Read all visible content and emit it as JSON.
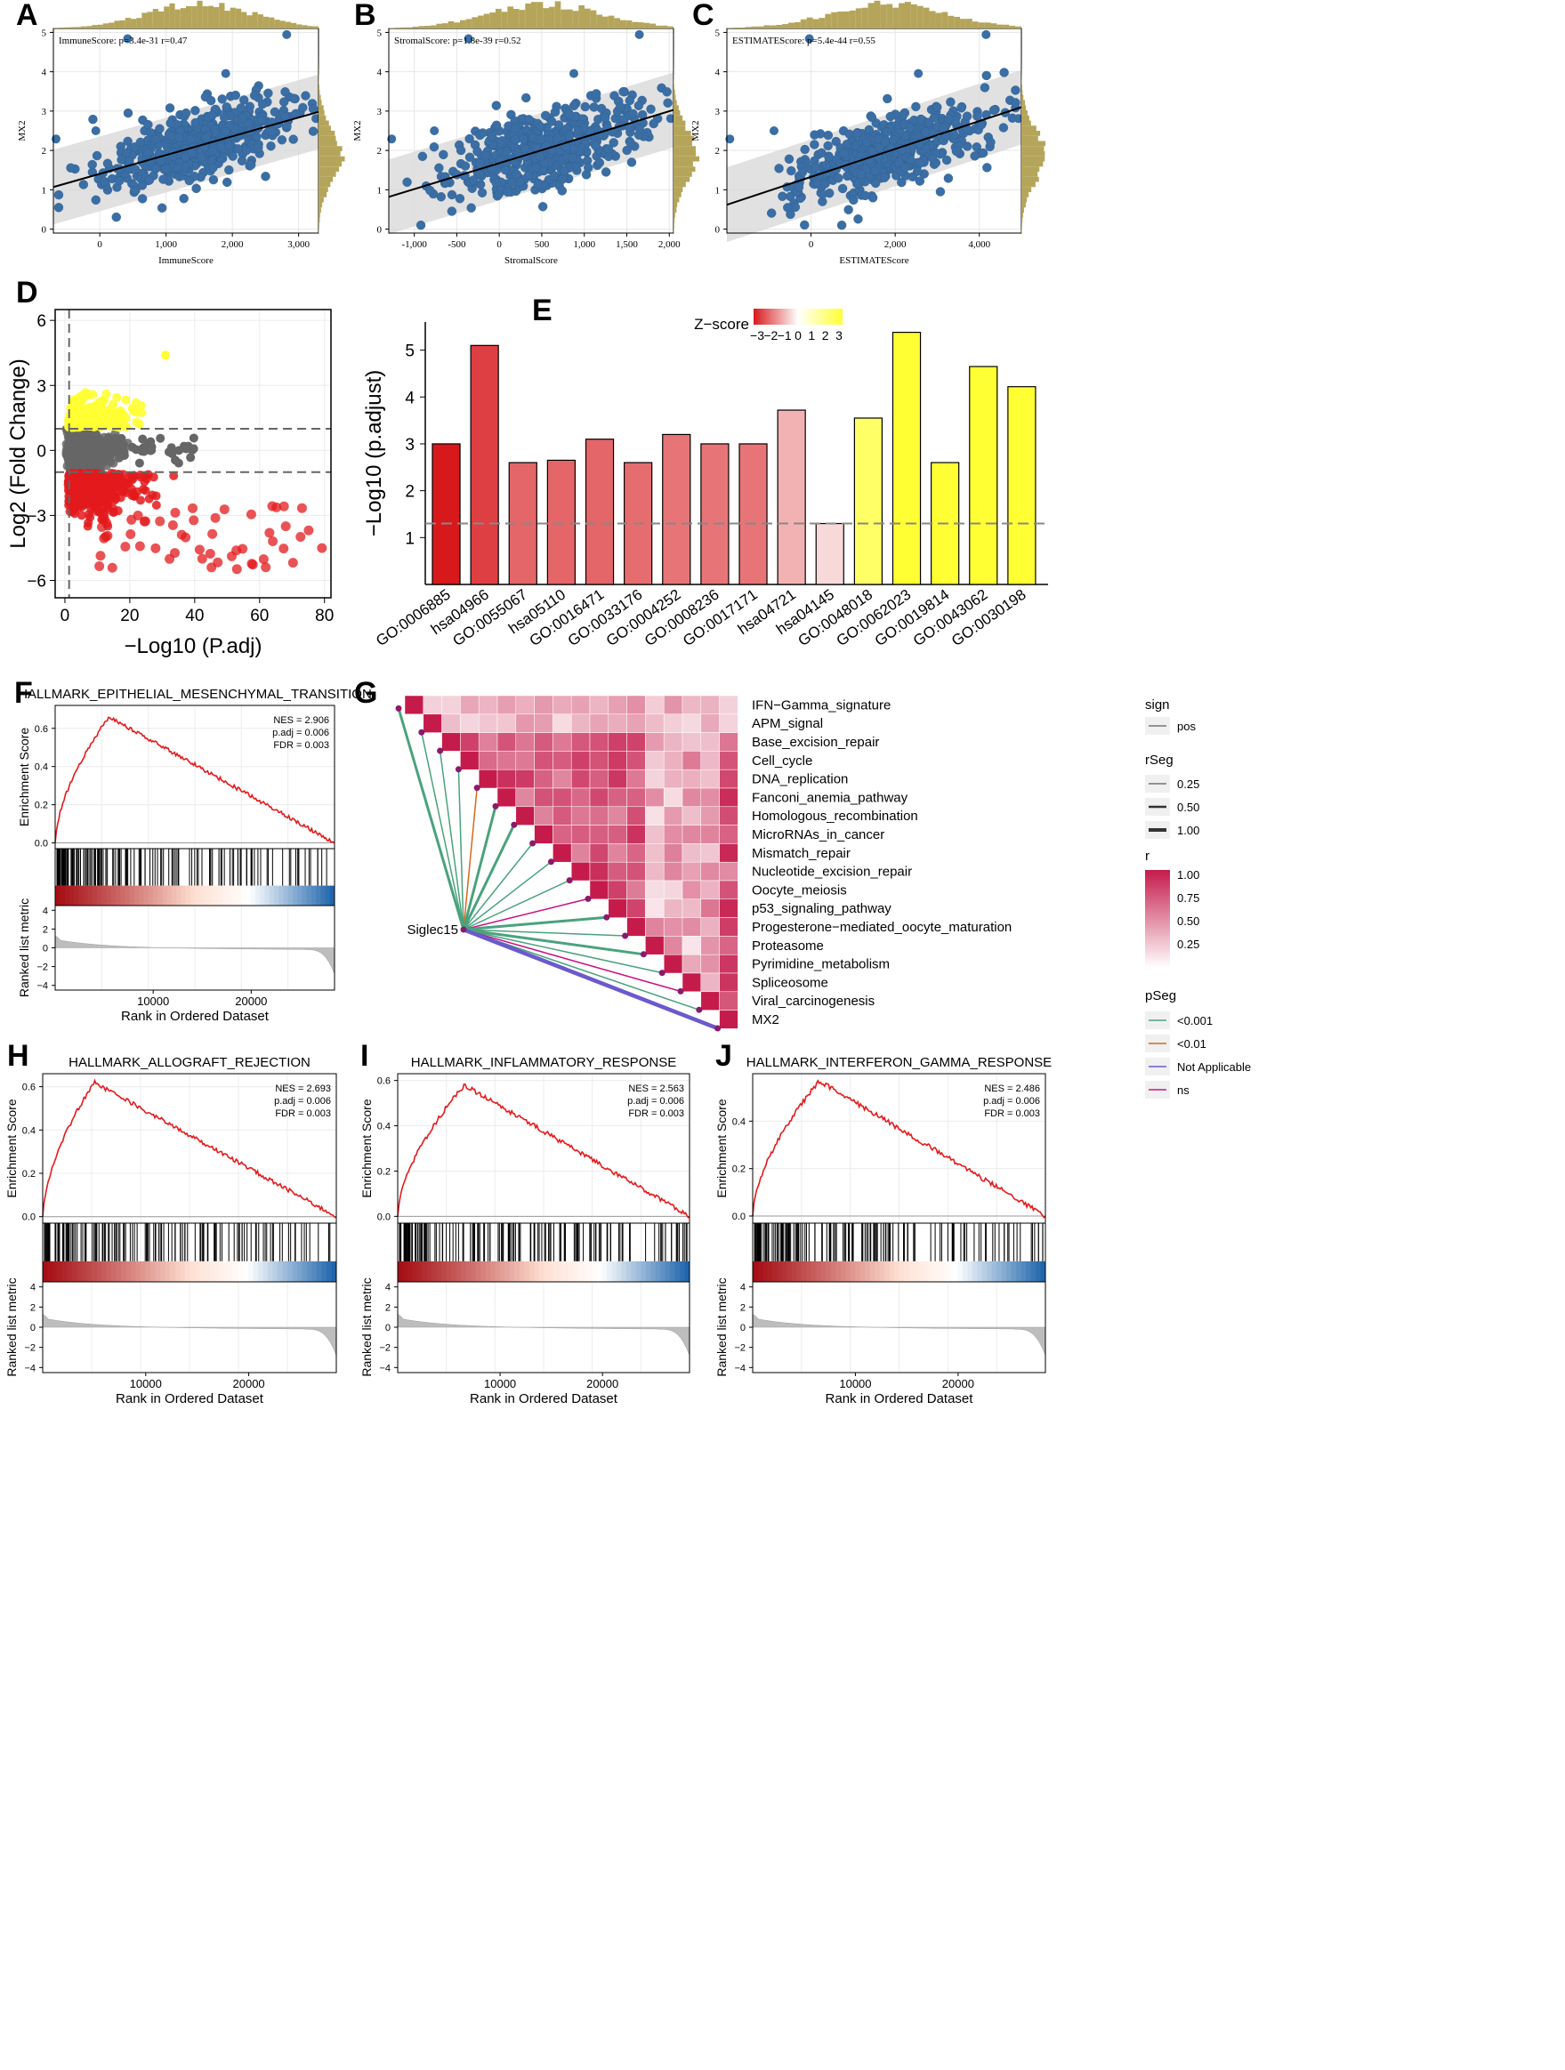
{
  "colors": {
    "scatter_point": "#3a6ea5",
    "histogram": "#b5a55a",
    "band": "#d9d9d9",
    "volcano_up": "#ffff33",
    "volcano_down": "#e31a1c",
    "volcano_ns": "#666666",
    "gsea_line": "#e31a1c"
  },
  "scatter_panels": [
    {
      "letter": "A",
      "type": "scatter",
      "stat_label": "ImmuneScore: p=3.4e-31 r=0.47",
      "xlabel": "ImmuneScore",
      "ylabel": "MX2",
      "xlim": [
        -700,
        3300
      ],
      "ylim": [
        -0.1,
        5.1
      ],
      "xticks": [
        0,
        1000,
        2000,
        3000
      ],
      "xtick_labels": [
        "0",
        "1,000",
        "2,000",
        "3,000"
      ],
      "yticks": [
        0,
        1,
        2,
        3,
        4,
        5
      ],
      "fit_line": [
        [
          -700,
          1.07
        ],
        [
          3300,
          2.98
        ]
      ],
      "band_halfwidth": 0.95
    },
    {
      "letter": "B",
      "type": "scatter",
      "stat_label": "StromalScore: p=1.8e-39 r=0.52",
      "xlabel": "StromalScore",
      "ylabel": "MX2",
      "xlim": [
        -1300,
        2050
      ],
      "ylim": [
        -0.1,
        5.1
      ],
      "xticks": [
        -1000,
        -500,
        0,
        500,
        1000,
        1500,
        2000
      ],
      "xtick_labels": [
        "-1,000",
        "-500",
        "0",
        "500",
        "1,000",
        "1,500",
        "2,000"
      ],
      "yticks": [
        0,
        1,
        2,
        3,
        4,
        5
      ],
      "fit_line": [
        [
          -1300,
          0.82
        ],
        [
          2050,
          3.03
        ]
      ],
      "band_halfwidth": 0.95
    },
    {
      "letter": "C",
      "type": "scatter",
      "stat_label": "ESTIMATEScore: p=5.4e-44 r=0.55",
      "xlabel": "ESTIMATEScore",
      "ylabel": "MX2",
      "xlim": [
        -2000,
        5000
      ],
      "ylim": [
        -0.1,
        5.1
      ],
      "xticks": [
        0,
        2000,
        4000
      ],
      "xtick_labels": [
        "0",
        "2,000",
        "4,000"
      ],
      "yticks": [
        0,
        1,
        2,
        3,
        4,
        5
      ],
      "fit_line": [
        [
          -2000,
          0.62
        ],
        [
          5000,
          3.1
        ]
      ],
      "band_halfwidth": 0.95
    }
  ],
  "volcano": {
    "letter": "D",
    "type": "scatter",
    "xlabel": "−Log10 (P.adj)",
    "ylabel": "Log2 (Fold Change)",
    "xlim": [
      -3,
      82
    ],
    "ylim": [
      -6.8,
      6.5
    ],
    "xticks": [
      0,
      20,
      40,
      60,
      80
    ],
    "yticks": [
      -6,
      -3,
      0,
      3,
      6
    ],
    "hlines": [
      1,
      -1
    ],
    "vline": 1.3
  },
  "go_bar": {
    "letter": "E",
    "type": "bar",
    "ylabel": "−Log10 (p.adjust)",
    "legend_title": "Z−score",
    "legend_ticks": [
      "−3",
      "−2",
      "−1",
      "0",
      "1",
      "2",
      "3"
    ],
    "threshold": 1.3,
    "ylim": [
      0,
      5.6
    ],
    "yticks": [
      1,
      2,
      3,
      4,
      5
    ],
    "categories": [
      "GO:0006885",
      "hsa04966",
      "GO:0055067",
      "hsa05110",
      "GO:0016471",
      "GO:0033176",
      "GO:0004252",
      "GO:0008236",
      "GO:0017171",
      "hsa04721",
      "hsa04145",
      "GO:0048018",
      "GO:0062023",
      "GO:0019814",
      "GO:0043062",
      "GO:0030198"
    ],
    "values": [
      3.0,
      5.1,
      2.6,
      2.65,
      3.1,
      2.6,
      3.2,
      3.0,
      3.0,
      3.72,
      1.3,
      3.55,
      5.38,
      2.6,
      4.65,
      4.22
    ],
    "zscores": [
      -3,
      -2.5,
      -2.0,
      -2.0,
      -2.0,
      -1.9,
      -1.8,
      -1.8,
      -1.8,
      -1.0,
      -0.5,
      1.5,
      3,
      3,
      3,
      3
    ]
  },
  "correlation": {
    "letter": "G",
    "type": "heatmap",
    "source_gene": "Siglec15",
    "rows": [
      "IFN−Gamma_signature",
      "APM_signal",
      "Base_excision_repair",
      "Cell_cycle",
      "DNA_replication",
      "Fanconi_anemia_pathway",
      "Homologous_recombination",
      "MicroRNAs_in_cancer",
      "Mismatch_repair",
      "Nucleotide_excision_repair",
      "Oocyte_meiosis",
      "p53_signaling_pathway",
      "Progesterone−mediated_oocyte_maturation",
      "Proteasome",
      "Pyrimidine_metabolism",
      "Spliceosome",
      "Viral_carcinogenesis",
      "MX2"
    ],
    "links": [
      {
        "row": 0,
        "pseg": "<0.001",
        "rseg": 0.5
      },
      {
        "row": 1,
        "pseg": "<0.001",
        "rseg": 0.25
      },
      {
        "row": 2,
        "pseg": "<0.001",
        "rseg": 0.25
      },
      {
        "row": 3,
        "pseg": "<0.001",
        "rseg": 0.25
      },
      {
        "row": 4,
        "pseg": "<0.01",
        "rseg": 0.25
      },
      {
        "row": 5,
        "pseg": "<0.001",
        "rseg": 0.5
      },
      {
        "row": 6,
        "pseg": "<0.001",
        "rseg": 0.5
      },
      {
        "row": 7,
        "pseg": "<0.001",
        "rseg": 0.25
      },
      {
        "row": 8,
        "pseg": "<0.001",
        "rseg": 0.25
      },
      {
        "row": 9,
        "pseg": "<0.001",
        "rseg": 0.25
      },
      {
        "row": 10,
        "pseg": "ns",
        "rseg": 0.25
      },
      {
        "row": 11,
        "pseg": "<0.001",
        "rseg": 0.5
      },
      {
        "row": 12,
        "pseg": "<0.001",
        "rseg": 0.25
      },
      {
        "row": 13,
        "pseg": "<0.001",
        "rseg": 0.5
      },
      {
        "row": 14,
        "pseg": "<0.001",
        "rseg": 0.25
      },
      {
        "row": 15,
        "pseg": "ns",
        "rseg": 0.25
      },
      {
        "row": 16,
        "pseg": "<0.001",
        "rseg": 0.25
      },
      {
        "row": 17,
        "pseg": "Not Applicable",
        "rseg": 1.0
      }
    ],
    "legend": {
      "sign_title": "sign",
      "sign_item": "pos",
      "rseg_title": "rSeg",
      "rseg_items": [
        "0.25",
        "0.50",
        "1.00"
      ],
      "r_title": "r",
      "r_ticks": [
        "1.00",
        "0.75",
        "0.50",
        "0.25"
      ],
      "pseg_title": "pSeg",
      "pseg_items": [
        "<0.001",
        "<0.01",
        "Not Applicable",
        "ns"
      ],
      "pseg_colors": [
        "#4aa27e",
        "#d2691e",
        "#6a5acd",
        "#c71585"
      ]
    }
  },
  "gsea_panels": [
    {
      "letter": "F",
      "type": "line",
      "title": "HALLMARK_EPITHELIAL_MESENCHYMAL_TRANSITION",
      "nes": "NES = 2.906",
      "padj": "p.adj = 0.006",
      "fdr": "FDR = 0.003",
      "peak_rank": 5500,
      "peak_es": 0.66,
      "es_ylim": [
        -0.03,
        0.72
      ],
      "es_ticks": [
        0.0,
        0.2,
        0.4,
        0.6
      ]
    },
    {
      "letter": "H",
      "type": "line",
      "title": "HALLMARK_ALLOGRAFT_REJECTION",
      "nes": "NES = 2.693",
      "padj": "p.adj = 0.006",
      "fdr": "FDR = 0.003",
      "peak_rank": 5000,
      "peak_es": 0.62,
      "es_ylim": [
        -0.03,
        0.66
      ],
      "es_ticks": [
        0.0,
        0.2,
        0.4,
        0.6
      ]
    },
    {
      "letter": "I",
      "type": "line",
      "title": "HALLMARK_INFLAMMATORY_RESPONSE",
      "nes": "NES = 2.563",
      "padj": "p.adj = 0.006",
      "fdr": "FDR = 0.003",
      "peak_rank": 6500,
      "peak_es": 0.58,
      "es_ylim": [
        -0.03,
        0.63
      ],
      "es_ticks": [
        0.0,
        0.2,
        0.4,
        0.6
      ]
    },
    {
      "letter": "J",
      "type": "line",
      "title": "HALLMARK_INTERFERON_GAMMA_RESPONSE",
      "nes": "NES = 2.486",
      "padj": "p.adj = 0.006",
      "fdr": "FDR = 0.003",
      "peak_rank": 6500,
      "peak_es": 0.57,
      "es_ylim": [
        -0.03,
        0.6
      ],
      "es_ticks": [
        0.0,
        0.2,
        0.4
      ]
    }
  ],
  "gsea_common": {
    "xlim": [
      0,
      28500
    ],
    "xticks": [
      10000,
      20000
    ],
    "xlabel": "Rank in Ordered Dataset",
    "es_label": "Enrichment Score",
    "metric_label": "Ranked list metric",
    "metric_ticks": [
      4,
      2,
      0,
      -2,
      -4
    ]
  }
}
